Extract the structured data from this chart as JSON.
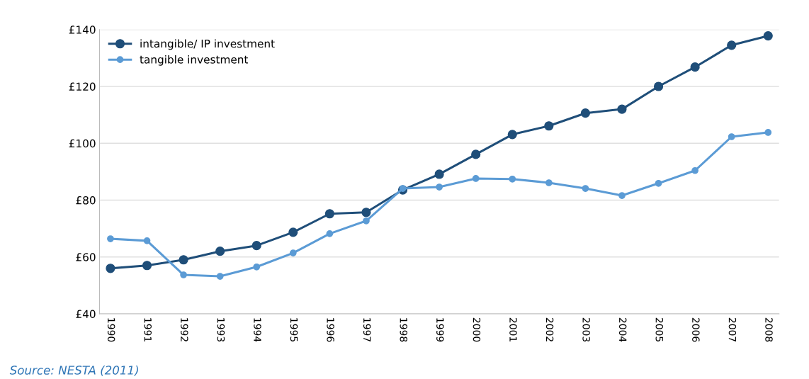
{
  "chart_data": {
    "type": "line",
    "categories": [
      "1990",
      "1991",
      "1992",
      "1993",
      "1994",
      "1995",
      "1996",
      "1997",
      "1998",
      "1999",
      "2000",
      "2001",
      "2002",
      "2003",
      "2004",
      "2005",
      "2006",
      "2007",
      "2008"
    ],
    "series": [
      {
        "name": "intangible/ IP investment",
        "color": "#1f4e79",
        "values": [
          56,
          57,
          59,
          62,
          64,
          68.7,
          75.2,
          75.7,
          83.6,
          89.1,
          96.1,
          103.1,
          106.1,
          110.6,
          112,
          120,
          126.8,
          134.5,
          137.8
        ]
      },
      {
        "name": "tangible investment",
        "color": "#5b9bd5",
        "values": [
          66.4,
          65.7,
          53.7,
          53.2,
          56.5,
          61.4,
          68.2,
          72.7,
          84.1,
          84.6,
          87.6,
          87.4,
          86.1,
          84.1,
          81.6,
          85.9,
          90.4,
          102.3,
          103.8
        ]
      }
    ],
    "ylim": [
      40,
      140
    ],
    "yticks": [
      {
        "value": 40,
        "label": "£40"
      },
      {
        "value": 60,
        "label": "£60"
      },
      {
        "value": 80,
        "label": "£80"
      },
      {
        "value": 100,
        "label": "£100"
      },
      {
        "value": 120,
        "label": "£120"
      },
      {
        "value": 140,
        "label": "£140"
      }
    ],
    "grid": "y",
    "legend": "top left",
    "marker": "circle",
    "line_style": "solid",
    "annotations": [
      "Source: NESTA (2011)"
    ]
  }
}
